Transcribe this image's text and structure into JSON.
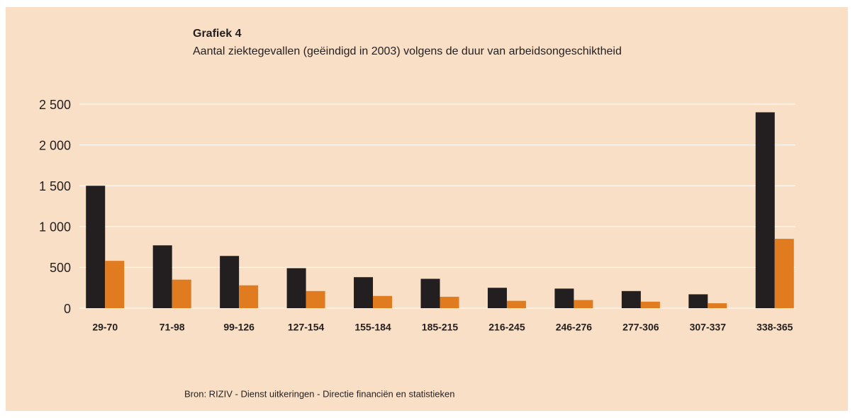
{
  "chart_data": {
    "type": "bar",
    "title": "Grafiek 4",
    "subtitle": "Aantal ziektegevallen (geëindigd in 2003) volgens de duur van arbeidsongeschiktheid",
    "source": "Bron: RIZIV - Dienst uitkeringen - Directie financiën en statistieken",
    "categories": [
      "29-70",
      "71-98",
      "99-126",
      "127-154",
      "155-184",
      "185-215",
      "216-245",
      "246-276",
      "277-306",
      "307-337",
      "338-365"
    ],
    "series": [
      {
        "color": "#231f20",
        "values": [
          1500,
          770,
          640,
          490,
          380,
          360,
          250,
          240,
          210,
          170,
          2400
        ]
      },
      {
        "color": "#e07b20",
        "values": [
          580,
          350,
          280,
          210,
          150,
          140,
          90,
          100,
          80,
          60,
          850
        ]
      }
    ],
    "ylim": [
      0,
      2500
    ],
    "yticks": [
      0,
      500,
      {
        "value": 1000,
        "label": "1 000"
      },
      {
        "value": 1500,
        "label": "1 500"
      },
      {
        "value": 2000,
        "label": "2 000"
      },
      {
        "value": 2500,
        "label": "2 500"
      }
    ],
    "grid": true
  }
}
